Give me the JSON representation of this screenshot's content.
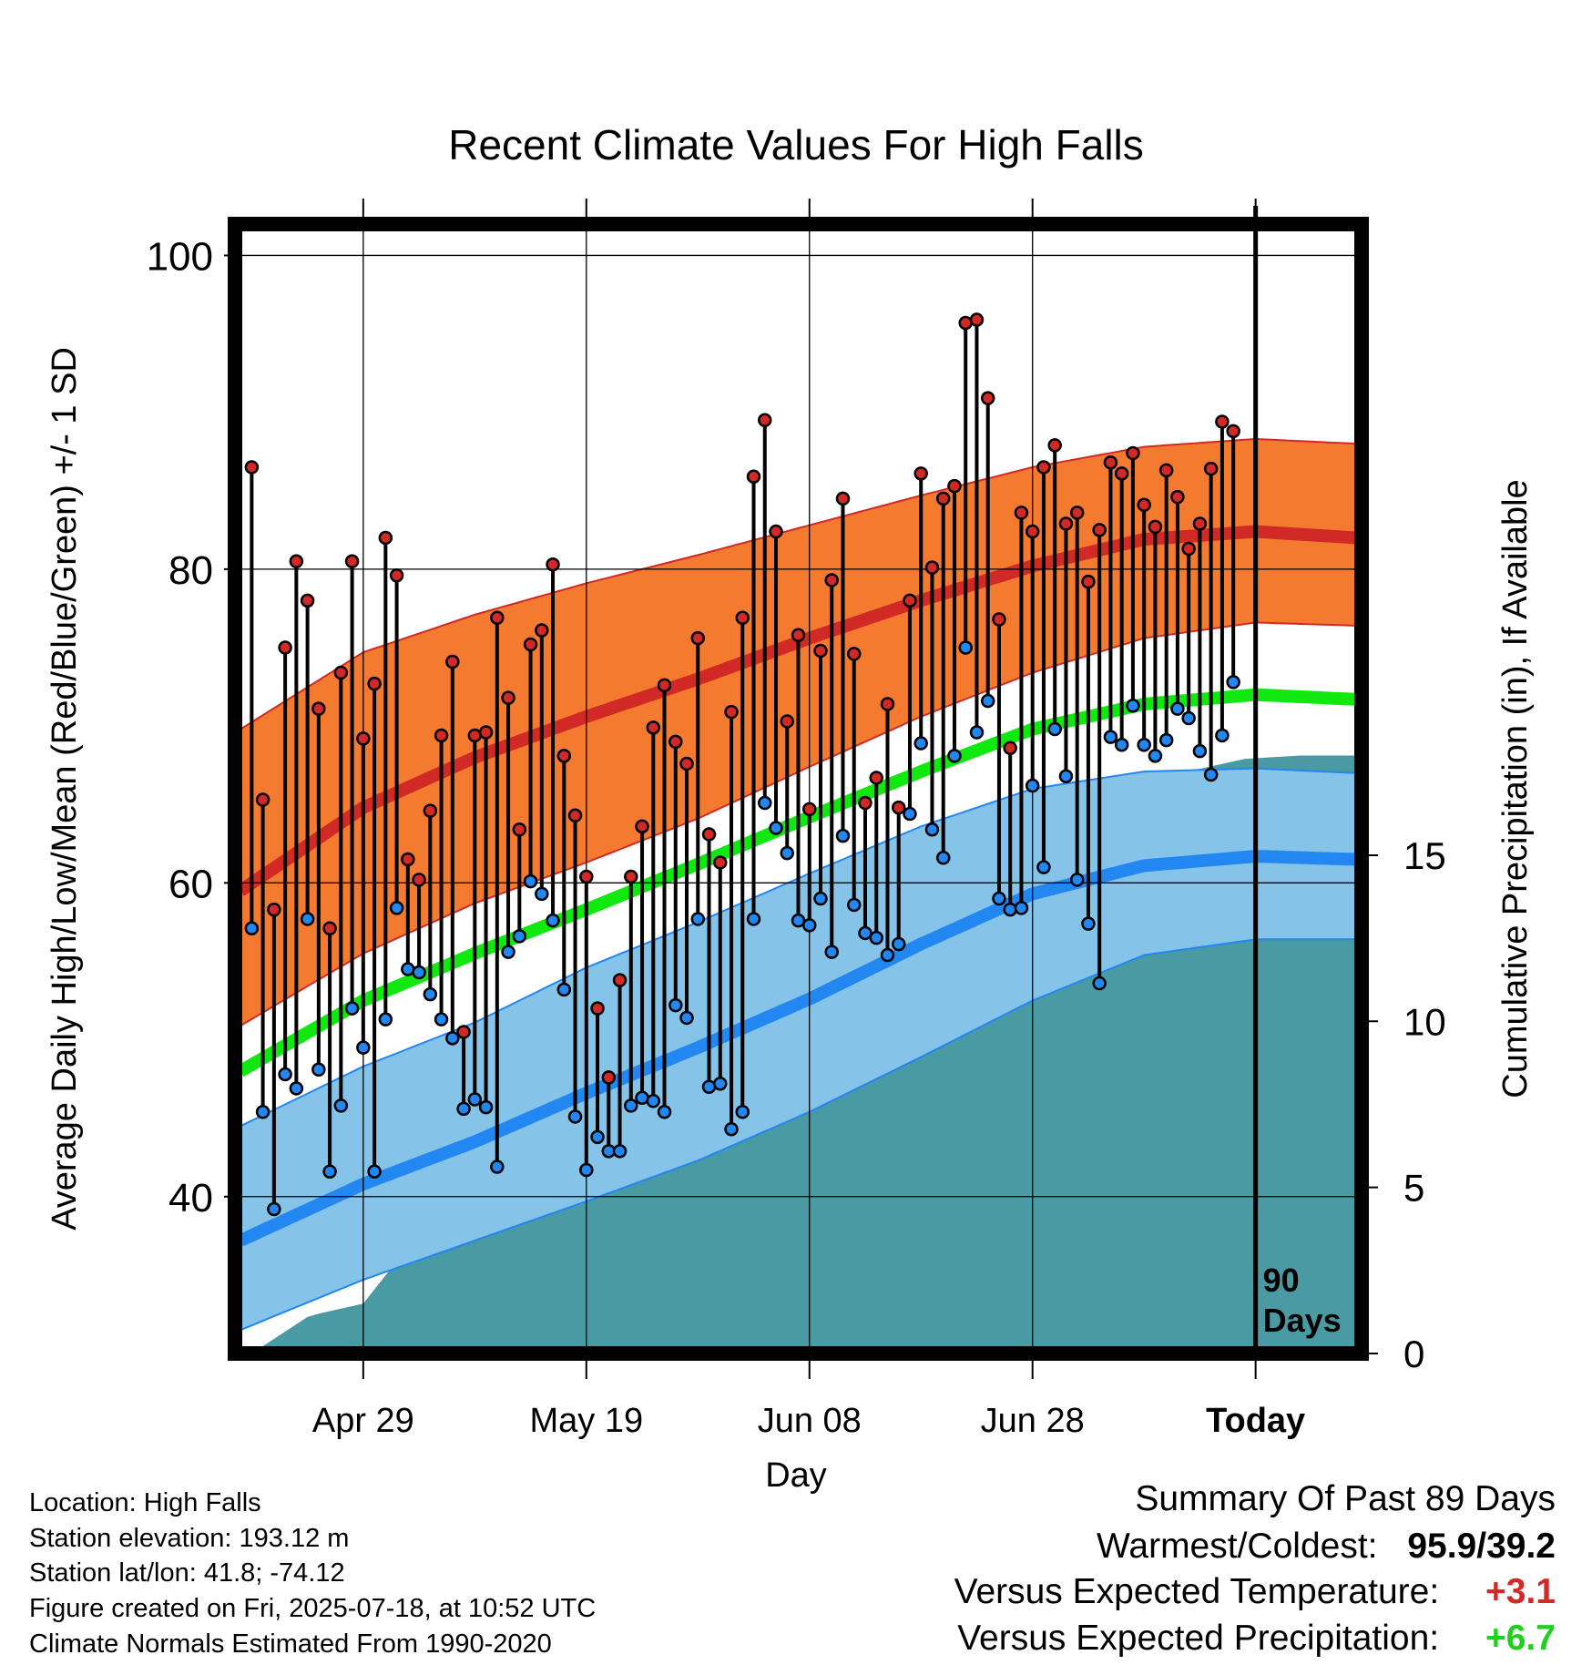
{
  "chart_data": {
    "type": "line",
    "title": "Recent Climate Values For High Falls",
    "xlabel": "Day",
    "ylabel": "Average Daily High/Low/Mean (Red/Blue/Green) +/- 1 SD",
    "y2label": "Cumulative Precipitation (in), If Available",
    "ylim": [
      30,
      102
    ],
    "y2lim": [
      0,
      34
    ],
    "y_ticks": [
      "40",
      "60",
      "80",
      "100"
    ],
    "y2_ticks": [
      "0",
      "5",
      "10",
      "15"
    ],
    "x_tick_labels": [
      "Apr 29",
      "May 19",
      "Jun 08",
      "Jun 28",
      "Today"
    ],
    "x_tick_days": [
      -80,
      -60,
      -40,
      -20,
      0
    ],
    "xlim": [
      -91.5,
      9.5
    ],
    "today_marker_label_line1": "90",
    "today_marker_label_line2": "Days",
    "grid": true,
    "colors": {
      "high": "#d12a26",
      "high_band": "#f47a30",
      "low": "#2287f0",
      "low_band": "#85c3e8",
      "mean": "#10e810",
      "precip": "#4a9aa4"
    },
    "normals": {
      "day": [
        -91,
        -80,
        -70,
        -60,
        -50,
        -40,
        -30,
        -20,
        -10,
        0,
        9
      ],
      "high_mean": [
        59.5,
        64.8,
        68.0,
        70.6,
        73.0,
        75.6,
        78.0,
        80.2,
        81.9,
        82.4,
        82.0
      ],
      "high_sd_upper": [
        69.8,
        74.7,
        77.1,
        79.1,
        80.9,
        82.8,
        84.7,
        86.5,
        87.8,
        88.3,
        88.0
      ],
      "high_sd_lower": [
        50.9,
        55.5,
        58.7,
        61.3,
        64.1,
        67.4,
        70.6,
        73.4,
        75.6,
        76.6,
        76.4
      ],
      "mean_normal": [
        48.0,
        52.5,
        55.5,
        58.3,
        61.2,
        64.2,
        67.1,
        69.8,
        71.4,
        72.0,
        71.7
      ],
      "low_mean": [
        37.2,
        40.8,
        43.5,
        46.6,
        49.5,
        52.6,
        56.1,
        59.3,
        61.1,
        61.7,
        61.5
      ],
      "low_sd_upper": [
        44.5,
        48.3,
        51.1,
        54.6,
        57.5,
        60.6,
        63.6,
        66.0,
        67.1,
        67.3,
        67.0
      ],
      "low_sd_lower": [
        31.5,
        34.7,
        37.2,
        39.7,
        42.3,
        45.4,
        48.9,
        52.5,
        55.4,
        56.4,
        56.4
      ]
    },
    "daily": {
      "first_day": -90,
      "high": [
        86.5,
        65.3,
        58.3,
        75.0,
        80.5,
        78.0,
        71.1,
        57.1,
        73.4,
        80.5,
        69.2,
        72.7,
        82.0,
        79.6,
        61.5,
        60.2,
        64.6,
        69.4,
        74.1,
        50.5,
        69.4,
        69.6,
        76.9,
        71.8,
        63.4,
        75.2,
        76.1,
        80.3,
        68.1,
        64.3,
        60.4,
        52.0,
        47.6,
        53.8,
        60.4,
        63.6,
        69.9,
        72.6,
        69.0,
        67.6,
        75.6,
        63.1,
        61.3,
        70.9,
        76.9,
        85.9,
        89.5,
        82.4,
        70.3,
        75.8,
        64.7,
        74.8,
        79.3,
        84.5,
        74.6,
        65.1,
        66.7,
        71.4,
        64.8,
        78.0,
        86.1,
        80.1,
        84.5,
        85.3,
        95.7,
        95.9,
        90.9,
        76.8,
        68.6,
        83.6,
        82.4,
        86.5,
        87.9,
        82.9,
        83.6,
        79.2,
        82.5,
        86.8,
        86.1,
        87.4,
        84.1,
        82.7,
        86.3,
        84.6,
        81.3,
        82.9,
        86.4,
        89.4,
        88.8
      ],
      "low": [
        57.1,
        45.4,
        39.2,
        47.8,
        46.9,
        57.7,
        48.1,
        41.6,
        45.8,
        52.0,
        49.5,
        41.6,
        51.3,
        58.4,
        54.5,
        54.3,
        52.9,
        51.3,
        50.1,
        45.6,
        46.2,
        45.7,
        41.9,
        55.6,
        56.6,
        60.1,
        59.3,
        57.6,
        53.2,
        45.1,
        41.7,
        43.8,
        42.9,
        42.9,
        45.8,
        46.3,
        46.1,
        45.4,
        52.2,
        51.4,
        57.7,
        47.0,
        47.2,
        44.3,
        45.4,
        57.7,
        65.1,
        63.5,
        61.9,
        57.6,
        57.3,
        59.0,
        55.6,
        63.0,
        58.6,
        56.8,
        56.5,
        55.4,
        56.1,
        64.4,
        68.9,
        63.4,
        61.6,
        68.1,
        75.0,
        69.6,
        71.6,
        59.0,
        58.3,
        58.4,
        66.2,
        61.0,
        69.8,
        66.8,
        60.2,
        57.4,
        53.6,
        69.3,
        68.8,
        71.3,
        68.8,
        68.1,
        69.1,
        71.1,
        70.5,
        68.4,
        66.9,
        69.4,
        72.8
      ]
    },
    "precip": {
      "day": [
        -90,
        -85,
        -84,
        -80,
        -76,
        -73,
        -70,
        -68,
        -66,
        -65,
        -63,
        -63,
        -57,
        -53,
        -50,
        -45,
        -42,
        -40,
        -38,
        -36,
        -32,
        -30,
        -25,
        -20,
        -17,
        -14,
        -12,
        -9,
        -5,
        -1,
        4,
        9
      ],
      "value": [
        0.0,
        1.1,
        1.2,
        1.5,
        3.2,
        4.4,
        5.0,
        7.8,
        7.9,
        8.0,
        8.0,
        8.1,
        8.5,
        8.9,
        9.0,
        9.2,
        12.6,
        13.0,
        13.5,
        14.0,
        14.2,
        15.2,
        16.0,
        16.1,
        16.3,
        16.6,
        17.0,
        17.3,
        17.6,
        17.9,
        18.0,
        18.0
      ]
    }
  },
  "footer": {
    "location": "Location: High Falls",
    "elevation": "Station elevation: 193.12 m",
    "latlon": "Station lat/lon: 41.8; -74.12",
    "created": "Figure created on Fri, 2025-07-18, at 10:52 UTC",
    "normals": "Climate Normals Estimated From 1990-2020"
  },
  "summary": {
    "title": "Summary Of Past 89 Days",
    "warmest_label": "Warmest/Coldest:",
    "warmest_value": "95.9/39.2",
    "temp_label": "Versus Expected Temperature:",
    "temp_value": "+3.1",
    "precip_label": "Versus Expected Precipitation:",
    "precip_value": "+6.7"
  }
}
